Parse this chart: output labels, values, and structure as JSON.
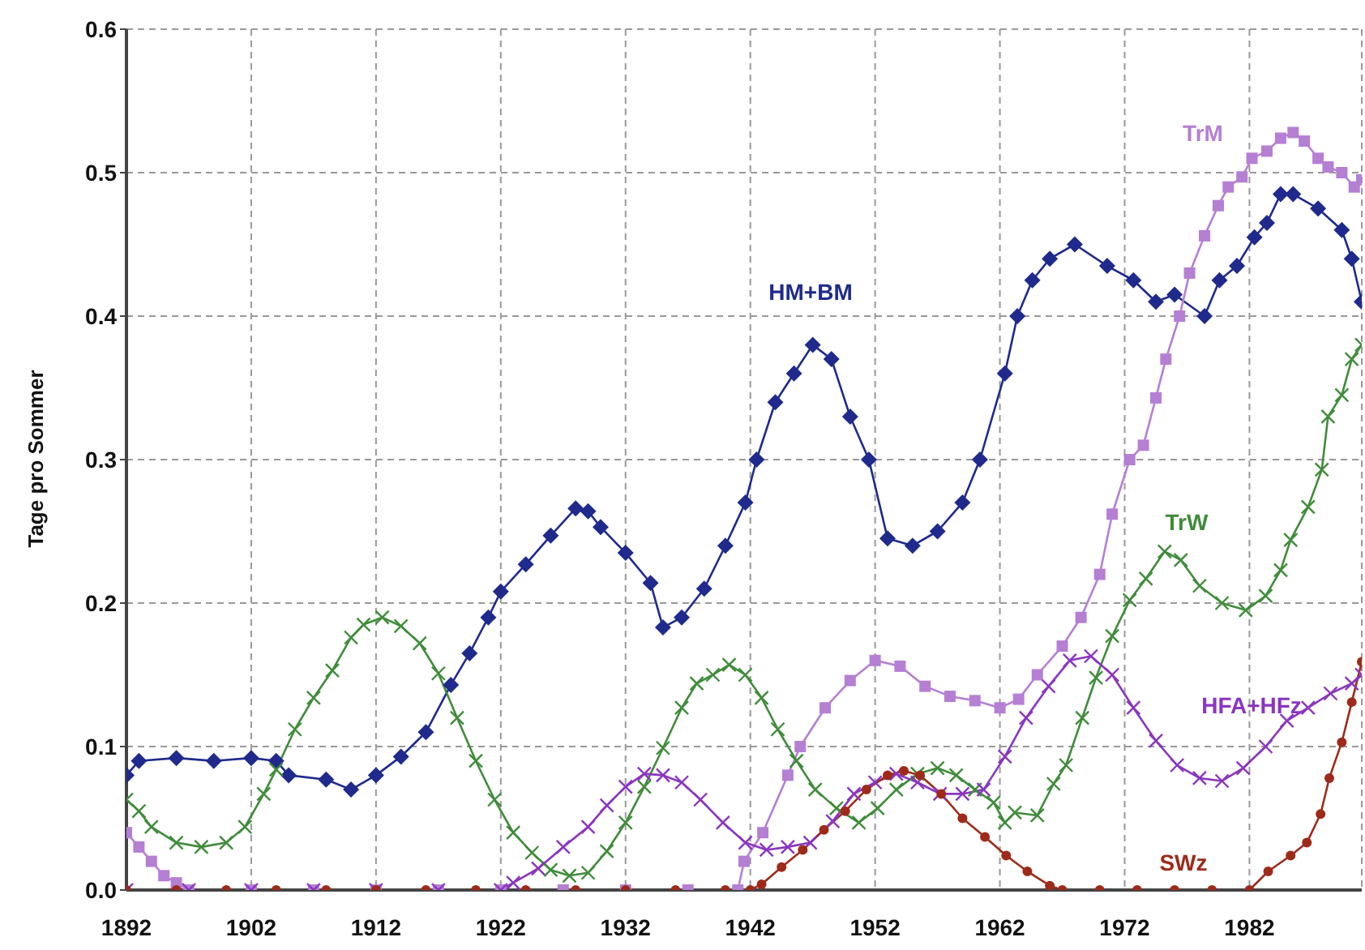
{
  "chart_data": {
    "type": "line",
    "ylabel": "Tage pro Sommer",
    "xlim": [
      1892,
      1991
    ],
    "xticks": [
      1892,
      1902,
      1912,
      1922,
      1932,
      1942,
      1952,
      1962,
      1972,
      1982
    ],
    "ylim": [
      0,
      0.6
    ],
    "yticks": [
      {
        "value": 0,
        "label": "0.0"
      },
      0.1,
      0.2,
      0.3,
      0.4,
      0.5,
      0.6
    ],
    "grid": true,
    "line_style": "solid",
    "series": [
      {
        "name": "HM+BM",
        "color": "#1f2a8c",
        "marker": "diamond",
        "x": [
          1892,
          1893,
          1896,
          1899,
          1902,
          1904,
          1905,
          1908,
          1910,
          1912,
          1914,
          1916,
          1918,
          1919.5,
          1921,
          1922,
          1924,
          1926,
          1928,
          1929,
          1930,
          1932,
          1934,
          1935,
          1936.5,
          1938.3,
          1940,
          1941.6,
          1942.5,
          1944,
          1945.5,
          1947,
          1948.5,
          1950,
          1951.5,
          1953,
          1955,
          1957,
          1959,
          1960.4,
          1962.4,
          1963.4,
          1964.6,
          1966,
          1968,
          1970.6,
          1972.7,
          1974.5,
          1976,
          1978.4,
          1979.6,
          1981,
          1982.4,
          1983.4,
          1984.5,
          1985.5,
          1987.5,
          1989.4,
          1990.2,
          1991
        ],
        "values": [
          0.08,
          0.09,
          0.092,
          0.09,
          0.092,
          0.09,
          0.08,
          0.077,
          0.07,
          0.08,
          0.093,
          0.11,
          0.143,
          0.165,
          0.19,
          0.208,
          0.227,
          0.247,
          0.266,
          0.264,
          0.253,
          0.235,
          0.214,
          0.183,
          0.19,
          0.21,
          0.24,
          0.27,
          0.3,
          0.34,
          0.36,
          0.38,
          0.37,
          0.33,
          0.3,
          0.245,
          0.24,
          0.25,
          0.27,
          0.3,
          0.36,
          0.4,
          0.425,
          0.44,
          0.45,
          0.435,
          0.425,
          0.41,
          0.415,
          0.4,
          0.425,
          0.435,
          0.455,
          0.465,
          0.485,
          0.485,
          0.475,
          0.46,
          0.44,
          0.41
        ]
      },
      {
        "name": "TrM",
        "color": "#b57fd3",
        "marker": "square",
        "x": [
          1892,
          1893,
          1894,
          1895,
          1896,
          1897,
          1902,
          1907,
          1912,
          1917,
          1922,
          1927,
          1932,
          1937,
          1941,
          1941.5,
          1943,
          1945,
          1946,
          1948,
          1950,
          1952,
          1954,
          1956,
          1958,
          1960,
          1962,
          1963.5,
          1965,
          1967,
          1968.5,
          1970,
          1971,
          1972.4,
          1973.5,
          1974.5,
          1975.3,
          1976.4,
          1977.2,
          1978.4,
          1979.5,
          1980.3,
          1981.4,
          1982.2,
          1983.4,
          1984.5,
          1985.5,
          1986.4,
          1987.5,
          1988.3,
          1989.4,
          1990.4,
          1991
        ],
        "values": [
          0.04,
          0.03,
          0.02,
          0.01,
          0.005,
          0,
          0,
          0,
          0,
          0,
          0,
          0,
          0,
          0,
          0,
          0.02,
          0.04,
          0.08,
          0.1,
          0.127,
          0.146,
          0.16,
          0.156,
          0.142,
          0.135,
          0.132,
          0.127,
          0.133,
          0.15,
          0.17,
          0.19,
          0.22,
          0.262,
          0.3,
          0.31,
          0.343,
          0.37,
          0.4,
          0.43,
          0.456,
          0.477,
          0.49,
          0.497,
          0.51,
          0.515,
          0.524,
          0.528,
          0.522,
          0.51,
          0.504,
          0.5,
          0.49,
          0.495
        ]
      },
      {
        "name": "TrW",
        "color": "#3f8c3a",
        "marker": "cross",
        "x": [
          1892,
          1893,
          1894,
          1896,
          1898,
          1900,
          1901.5,
          1903,
          1904,
          1905.5,
          1907,
          1908.5,
          1910,
          1911,
          1912.5,
          1914,
          1915.5,
          1917,
          1918.5,
          1920,
          1921.5,
          1923,
          1924.5,
          1926,
          1927.5,
          1929,
          1930.5,
          1932,
          1933.5,
          1935,
          1936.5,
          1937.7,
          1939,
          1940.3,
          1941.6,
          1942.9,
          1944.2,
          1945.7,
          1947.2,
          1948.9,
          1950.7,
          1952.2,
          1953.7,
          1955.4,
          1957,
          1958.5,
          1960,
          1961.5,
          1962.4,
          1963.2,
          1965,
          1966.3,
          1967.3,
          1968.6,
          1969.7,
          1971,
          1972.4,
          1973.7,
          1975.2,
          1976.5,
          1978,
          1979.8,
          1981.7,
          1983.3,
          1984.5,
          1985.3,
          1986.7,
          1987.8,
          1988.3,
          1989.4,
          1990.2,
          1991
        ],
        "values": [
          0.063,
          0.055,
          0.044,
          0.033,
          0.03,
          0.033,
          0.044,
          0.067,
          0.084,
          0.112,
          0.134,
          0.153,
          0.176,
          0.185,
          0.19,
          0.184,
          0.172,
          0.151,
          0.12,
          0.09,
          0.063,
          0.04,
          0.026,
          0.014,
          0.01,
          0.012,
          0.027,
          0.047,
          0.072,
          0.099,
          0.127,
          0.144,
          0.15,
          0.157,
          0.15,
          0.134,
          0.112,
          0.09,
          0.07,
          0.057,
          0.047,
          0.057,
          0.07,
          0.081,
          0.085,
          0.08,
          0.07,
          0.061,
          0.047,
          0.054,
          0.052,
          0.074,
          0.087,
          0.12,
          0.148,
          0.177,
          0.202,
          0.217,
          0.236,
          0.23,
          0.212,
          0.2,
          0.195,
          0.205,
          0.223,
          0.244,
          0.267,
          0.293,
          0.33,
          0.345,
          0.37,
          0.38
        ]
      },
      {
        "name": "HFA+HFz",
        "color": "#8a35c0",
        "marker": "cross",
        "x": [
          1892,
          1897,
          1902,
          1907,
          1912,
          1917,
          1922,
          1923,
          1925,
          1927,
          1929,
          1930.5,
          1932,
          1933.5,
          1935,
          1936.5,
          1938,
          1939.8,
          1941.6,
          1943.3,
          1945,
          1946.8,
          1948.6,
          1950.3,
          1952,
          1953.7,
          1955.4,
          1957.2,
          1959,
          1960.7,
          1962.4,
          1964.1,
          1965.9,
          1967.6,
          1969.3,
          1971,
          1972.7,
          1974.5,
          1976.2,
          1978,
          1979.8,
          1981.5,
          1983.3,
          1985,
          1986.7,
          1988.5,
          1990.2,
          1991
        ],
        "values": [
          0,
          0,
          0,
          0,
          0,
          0,
          0,
          0.005,
          0.015,
          0.03,
          0.044,
          0.059,
          0.072,
          0.081,
          0.08,
          0.075,
          0.063,
          0.047,
          0.033,
          0.028,
          0.03,
          0.033,
          0.048,
          0.067,
          0.075,
          0.081,
          0.075,
          0.067,
          0.067,
          0.07,
          0.093,
          0.12,
          0.142,
          0.16,
          0.163,
          0.15,
          0.127,
          0.104,
          0.087,
          0.078,
          0.076,
          0.085,
          0.1,
          0.118,
          0.127,
          0.137,
          0.144,
          0.15
        ]
      },
      {
        "name": "SWz",
        "color": "#9e2a1a",
        "marker": "circle",
        "x": [
          1892,
          1896,
          1900,
          1904,
          1908,
          1912,
          1916,
          1920,
          1924,
          1928,
          1932,
          1936,
          1940,
          1942,
          1942.9,
          1944.5,
          1946.2,
          1947.9,
          1949.6,
          1951.3,
          1953,
          1954.3,
          1955.6,
          1957.3,
          1959,
          1960.8,
          1962.5,
          1964.2,
          1966,
          1967,
          1970,
          1973,
          1976,
          1979,
          1982,
          1983.5,
          1985.3,
          1986.6,
          1987.7,
          1988.4,
          1989.4,
          1990.2,
          1991
        ],
        "values": [
          0,
          0,
          0,
          0,
          0,
          0,
          0,
          0,
          0,
          0,
          0,
          0,
          0,
          0,
          0.004,
          0.016,
          0.028,
          0.042,
          0.055,
          0.07,
          0.08,
          0.083,
          0.08,
          0.067,
          0.05,
          0.037,
          0.024,
          0.013,
          0.003,
          0,
          0,
          0,
          0,
          0,
          0,
          0.013,
          0.024,
          0.033,
          0.053,
          0.078,
          0.103,
          0.131,
          0.159
        ]
      }
    ]
  }
}
